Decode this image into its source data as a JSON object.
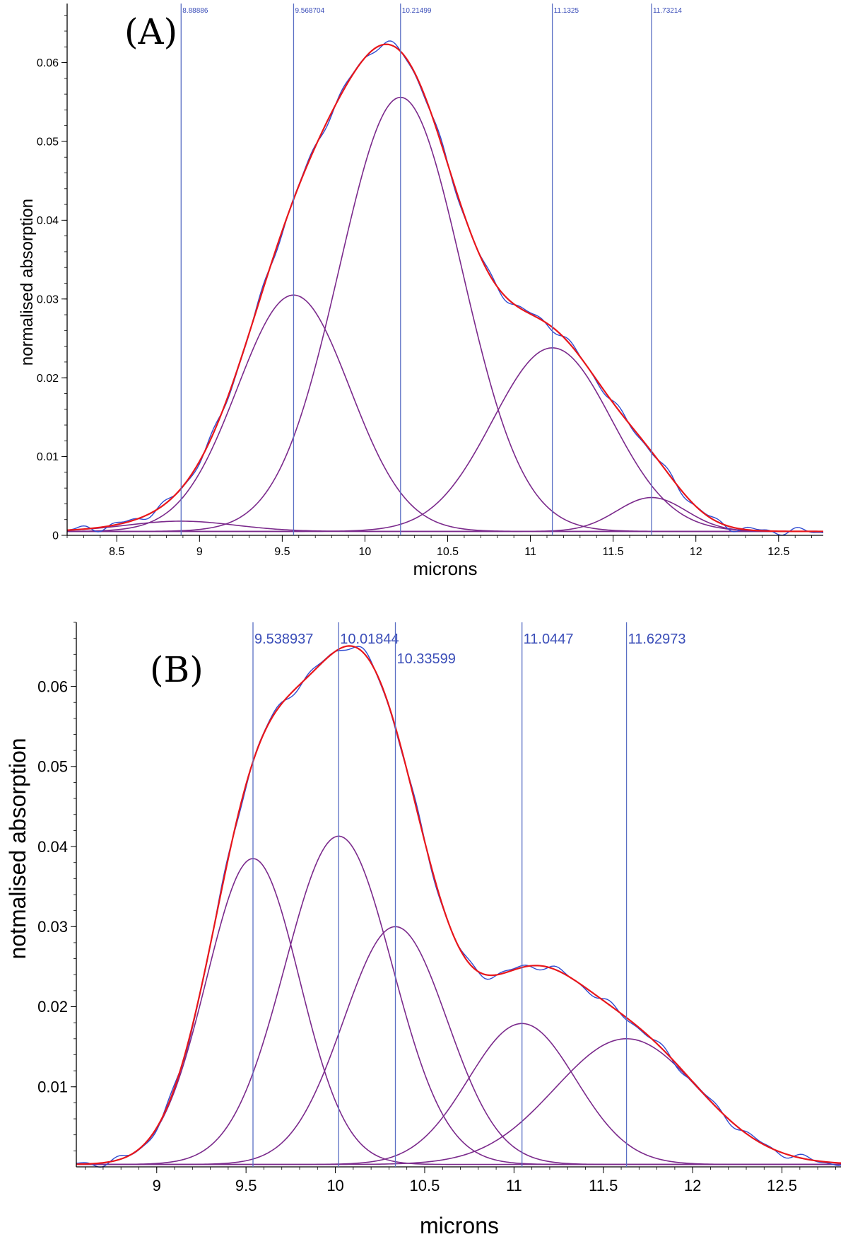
{
  "chart_data": [
    {
      "type": "line",
      "panel_label": "(A)",
      "xlabel": "microns",
      "ylabel": "normalised absorption",
      "xlim": [
        8.2,
        12.77
      ],
      "ylim": [
        0,
        0.0675
      ],
      "x_ticks": [
        "8.5",
        "9",
        "9.5",
        "10",
        "10.5",
        "11",
        "11.5",
        "12",
        "12.5"
      ],
      "y_ticks": [
        "0",
        "0.01",
        "0.02",
        "0.03",
        "0.04",
        "0.05",
        "0.06"
      ],
      "peak_markers": [
        "8.88886",
        "9.568704",
        "10.21499",
        "11.1325",
        "11.73214"
      ],
      "baseline": 0.0005,
      "components": [
        {
          "center": 8.88886,
          "amplitude": 0.0013,
          "sigma": 0.33
        },
        {
          "center": 9.568704,
          "amplitude": 0.03,
          "sigma": 0.34
        },
        {
          "center": 10.21499,
          "amplitude": 0.0551,
          "sigma": 0.37
        },
        {
          "center": 11.1325,
          "amplitude": 0.0233,
          "sigma": 0.36
        },
        {
          "center": 11.73214,
          "amplitude": 0.0043,
          "sigma": 0.21
        }
      ],
      "series": [
        {
          "name": "fitted components",
          "color": "#7b2a8c"
        },
        {
          "name": "fit total",
          "color": "#e8161b"
        },
        {
          "name": "measured spectrum",
          "color": "#2f4bd0"
        }
      ]
    },
    {
      "type": "line",
      "panel_label": "(B)",
      "xlabel": "microns",
      "ylabel": "notmalised absorption",
      "xlim": [
        8.55,
        12.83
      ],
      "ylim": [
        0,
        0.068
      ],
      "x_ticks": [
        "9",
        "9.5",
        "10",
        "10.5",
        "11",
        "11.5",
        "12",
        "12.5"
      ],
      "y_ticks": [
        "0.01",
        "0.02",
        "0.03",
        "0.04",
        "0.05",
        "0.06"
      ],
      "peak_markers": [
        "9.538937",
        "10.01844",
        "10.33599",
        "11.0447",
        "11.62973"
      ],
      "baseline": 0.0003,
      "components": [
        {
          "center": 9.538937,
          "amplitude": 0.0382,
          "sigma": 0.26
        },
        {
          "center": 10.01844,
          "amplitude": 0.041,
          "sigma": 0.3
        },
        {
          "center": 10.33599,
          "amplitude": 0.0297,
          "sigma": 0.29
        },
        {
          "center": 11.0447,
          "amplitude": 0.0176,
          "sigma": 0.3
        },
        {
          "center": 11.62973,
          "amplitude": 0.0157,
          "sigma": 0.4
        }
      ],
      "series": [
        {
          "name": "fitted components",
          "color": "#7b2a8c"
        },
        {
          "name": "fit total",
          "color": "#e8161b"
        },
        {
          "name": "measured spectrum",
          "color": "#2f4bd0"
        }
      ]
    }
  ]
}
